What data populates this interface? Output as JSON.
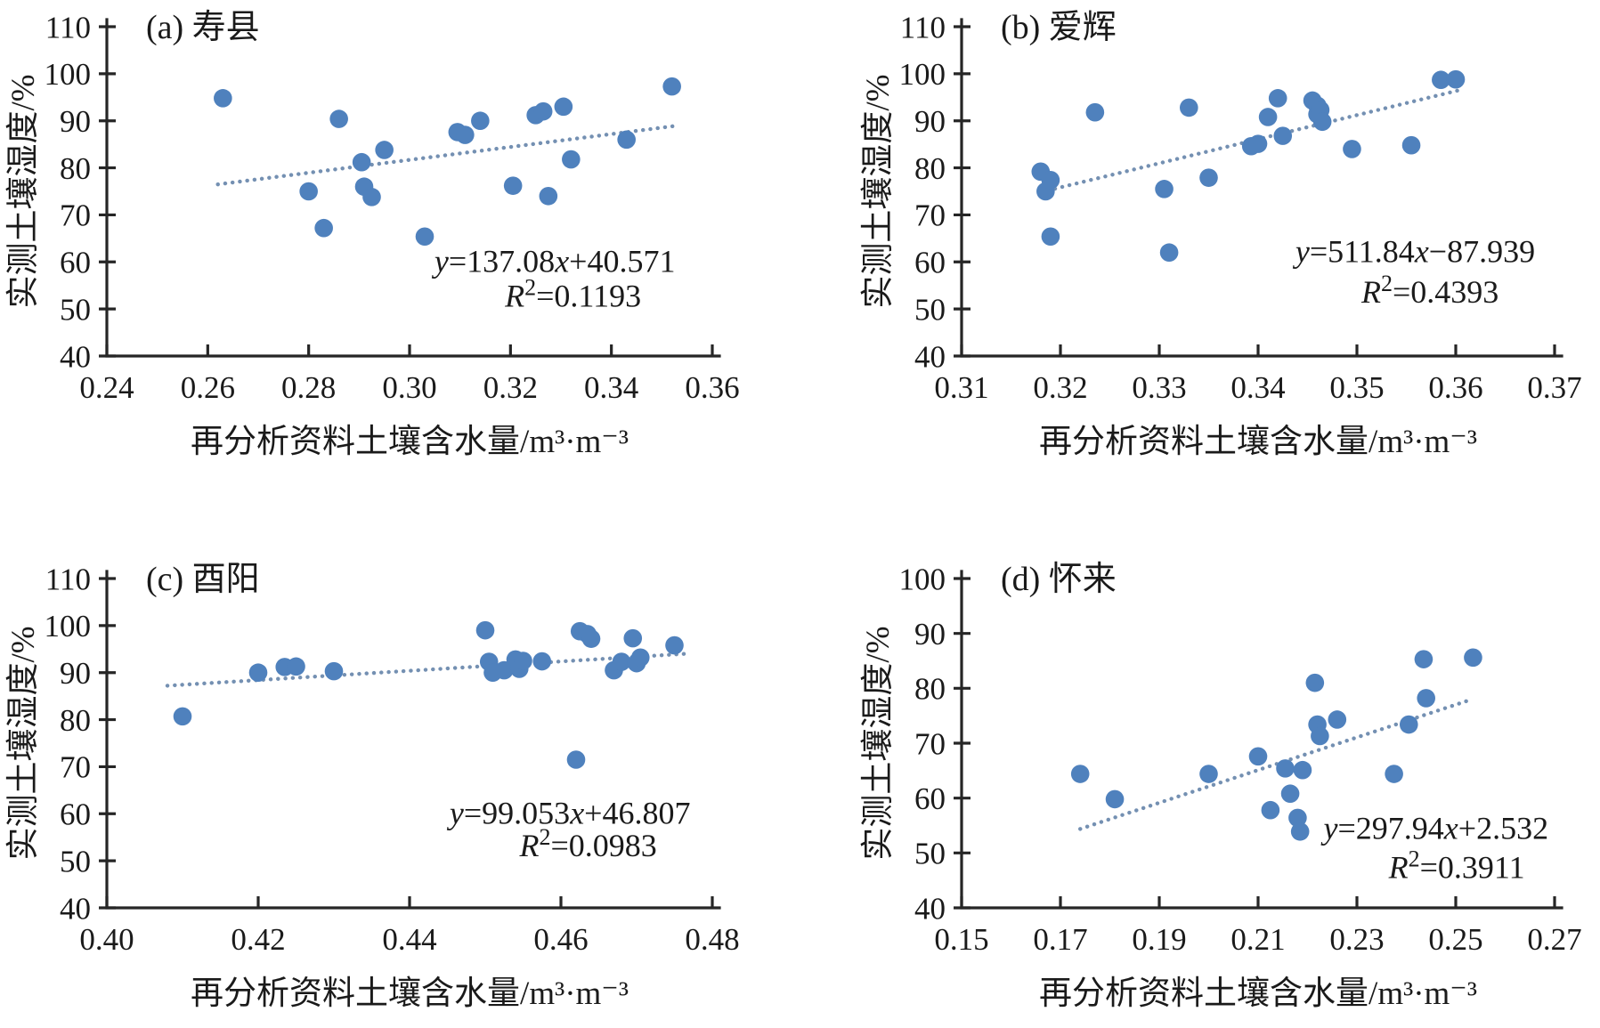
{
  "figure": {
    "background": "#ffffff",
    "point_color": "#4f81bd",
    "trend_color": "#7490b2",
    "axis_color": "#262626",
    "text_color": "#1a1a1a",
    "y_axis_title": "实测土壤湿度/%",
    "x_axis_title": "再分析资料土壤含水量/m³·m⁻³"
  },
  "chart_data": [
    {
      "type": "scatter",
      "panel": "a",
      "title": "(a) 寿县",
      "xlabel": "再分析资料土壤含水量/m³·m⁻³",
      "ylabel": "实测土壤湿度/%",
      "xlim": [
        0.24,
        0.36
      ],
      "ylim": [
        40,
        110
      ],
      "x_tick_values": [
        0.24,
        0.26,
        0.28,
        0.3,
        0.32,
        0.34,
        0.36
      ],
      "x_tick_labels": [
        "0.24",
        "0.26",
        "0.28",
        "0.30",
        "0.32",
        "0.34",
        "0.36"
      ],
      "y_tick_values": [
        40,
        50,
        60,
        70,
        80,
        90,
        100,
        110
      ],
      "y_tick_labels": [
        "40",
        "50",
        "60",
        "70",
        "80",
        "90",
        "100",
        "110"
      ],
      "grid": false,
      "points": [
        [
          0.263,
          94.8
        ],
        [
          0.28,
          75.0
        ],
        [
          0.283,
          67.2
        ],
        [
          0.286,
          90.4
        ],
        [
          0.2905,
          81.2
        ],
        [
          0.291,
          76.0
        ],
        [
          0.2925,
          73.8
        ],
        [
          0.295,
          83.8
        ],
        [
          0.303,
          65.4
        ],
        [
          0.3095,
          87.6
        ],
        [
          0.311,
          87.0
        ],
        [
          0.314,
          90.0
        ],
        [
          0.3205,
          76.2
        ],
        [
          0.325,
          91.2
        ],
        [
          0.3265,
          92.0
        ],
        [
          0.3275,
          74.0
        ],
        [
          0.3305,
          93.0
        ],
        [
          0.332,
          81.8
        ],
        [
          0.343,
          86.0
        ],
        [
          0.352,
          97.3
        ]
      ],
      "trend": {
        "slope": 137.08,
        "intercept": 40.571,
        "x_start": 0.262,
        "x_end": 0.3535
      },
      "equation": {
        "text": "y=137.08x+40.571",
        "slope_text": "=137.08",
        "intercept_text": "+40.571",
        "r2_full": "R²=0.1193",
        "r2_text": "=0.1193",
        "pos": [
          0.74,
          0.745
        ],
        "r2_pos": [
          0.77,
          0.85
        ]
      }
    },
    {
      "type": "scatter",
      "panel": "b",
      "title": "(b) 爱辉",
      "xlabel": "再分析资料土壤含水量/m³·m⁻³",
      "ylabel": "实测土壤湿度/%",
      "xlim": [
        0.31,
        0.37
      ],
      "ylim": [
        40,
        110
      ],
      "x_tick_values": [
        0.31,
        0.32,
        0.33,
        0.34,
        0.35,
        0.36,
        0.37
      ],
      "x_tick_labels": [
        "0.31",
        "0.32",
        "0.33",
        "0.34",
        "0.35",
        "0.36",
        "0.37"
      ],
      "y_tick_values": [
        40,
        50,
        60,
        70,
        80,
        90,
        100,
        110
      ],
      "y_tick_labels": [
        "40",
        "50",
        "60",
        "70",
        "80",
        "90",
        "100",
        "110"
      ],
      "grid": false,
      "points": [
        [
          0.318,
          79.2
        ],
        [
          0.3185,
          75.0
        ],
        [
          0.319,
          77.4
        ],
        [
          0.319,
          65.4
        ],
        [
          0.3235,
          91.8
        ],
        [
          0.3305,
          75.5
        ],
        [
          0.331,
          62.0
        ],
        [
          0.333,
          92.8
        ],
        [
          0.335,
          77.9
        ],
        [
          0.3393,
          84.6
        ],
        [
          0.34,
          85.1
        ],
        [
          0.341,
          90.8
        ],
        [
          0.342,
          94.8
        ],
        [
          0.3425,
          86.8
        ],
        [
          0.3455,
          94.3
        ],
        [
          0.346,
          93.2
        ],
        [
          0.346,
          91.4
        ],
        [
          0.3463,
          92.3
        ],
        [
          0.3465,
          89.8
        ],
        [
          0.3495,
          84.0
        ],
        [
          0.3555,
          84.8
        ],
        [
          0.3585,
          98.7
        ],
        [
          0.36,
          98.8
        ]
      ],
      "trend": {
        "slope": 511.84,
        "intercept": -87.939,
        "x_start": 0.318,
        "x_end": 0.3605
      },
      "equation": {
        "text": "y=511.84x−87.939",
        "slope_text": "=511.84",
        "intercept_text": "−87.939",
        "r2_full": "R²=0.4393",
        "r2_text": "=0.4393",
        "pos": [
          0.765,
          0.715
        ],
        "r2_pos": [
          0.79,
          0.838
        ]
      }
    },
    {
      "type": "scatter",
      "panel": "c",
      "title": "(c) 酉阳",
      "xlabel": "再分析资料土壤含水量/m³·m⁻³",
      "ylabel": "实测土壤湿度/%",
      "xlim": [
        0.4,
        0.48
      ],
      "ylim": [
        40,
        110
      ],
      "x_tick_values": [
        0.4,
        0.42,
        0.44,
        0.46,
        0.48
      ],
      "x_tick_labels": [
        "0.40",
        "0.42",
        "0.44",
        "0.46",
        "0.48"
      ],
      "y_tick_values": [
        40,
        50,
        60,
        70,
        80,
        90,
        100,
        110
      ],
      "y_tick_labels": [
        "40",
        "50",
        "60",
        "70",
        "80",
        "90",
        "100",
        "110"
      ],
      "grid": false,
      "points": [
        [
          0.41,
          80.7
        ],
        [
          0.42,
          90.0
        ],
        [
          0.4235,
          91.2
        ],
        [
          0.425,
          91.3
        ],
        [
          0.43,
          90.3
        ],
        [
          0.45,
          99.0
        ],
        [
          0.4505,
          92.3
        ],
        [
          0.451,
          90.0
        ],
        [
          0.4525,
          90.5
        ],
        [
          0.454,
          92.8
        ],
        [
          0.4545,
          90.8
        ],
        [
          0.455,
          92.5
        ],
        [
          0.4575,
          92.4
        ],
        [
          0.462,
          71.5
        ],
        [
          0.4625,
          98.8
        ],
        [
          0.4635,
          98.2
        ],
        [
          0.464,
          97.2
        ],
        [
          0.467,
          90.5
        ],
        [
          0.468,
          92.3
        ],
        [
          0.4695,
          97.3
        ],
        [
          0.47,
          92.0
        ],
        [
          0.4705,
          93.2
        ],
        [
          0.475,
          95.8
        ]
      ],
      "trend": {
        "slope": 99.053,
        "intercept": 46.807,
        "x_start": 0.408,
        "x_end": 0.477
      },
      "equation": {
        "text": "y=99.053x+46.807",
        "slope_text": "=99.053",
        "intercept_text": "+46.807",
        "r2_full": "R²=0.0983",
        "r2_text": "=0.0983",
        "pos": [
          0.765,
          0.745
        ],
        "r2_pos": [
          0.795,
          0.843
        ]
      }
    },
    {
      "type": "scatter",
      "panel": "d",
      "title": "(d) 怀来",
      "xlabel": "再分析资料土壤含水量/m³·m⁻³",
      "ylabel": "实测土壤湿度/%",
      "xlim": [
        0.15,
        0.27
      ],
      "ylim": [
        40,
        100
      ],
      "x_tick_values": [
        0.15,
        0.17,
        0.19,
        0.21,
        0.23,
        0.25,
        0.27
      ],
      "x_tick_labels": [
        "0.15",
        "0.17",
        "0.19",
        "0.21",
        "0.23",
        "0.25",
        "0.27"
      ],
      "y_tick_values": [
        40,
        50,
        60,
        70,
        80,
        90,
        100
      ],
      "y_tick_labels": [
        "40",
        "50",
        "60",
        "70",
        "80",
        "90",
        "100"
      ],
      "grid": false,
      "points": [
        [
          0.174,
          64.4
        ],
        [
          0.181,
          59.8
        ],
        [
          0.2,
          64.4
        ],
        [
          0.21,
          67.6
        ],
        [
          0.2125,
          57.8
        ],
        [
          0.2155,
          65.4
        ],
        [
          0.2165,
          60.8
        ],
        [
          0.218,
          56.4
        ],
        [
          0.2185,
          53.9
        ],
        [
          0.219,
          65.1
        ],
        [
          0.2215,
          81.0
        ],
        [
          0.222,
          73.4
        ],
        [
          0.2225,
          71.3
        ],
        [
          0.226,
          74.3
        ],
        [
          0.2375,
          64.4
        ],
        [
          0.2405,
          73.4
        ],
        [
          0.2435,
          85.3
        ],
        [
          0.244,
          78.2
        ],
        [
          0.2535,
          85.6
        ]
      ],
      "trend": {
        "slope": 297.94,
        "intercept": 2.532,
        "x_start": 0.174,
        "x_end": 0.2535
      },
      "equation": {
        "text": "y=297.94x+2.532",
        "slope_text": "=297.94",
        "intercept_text": "+2.532",
        "r2_full": "R²=0.3911",
        "r2_text": "=0.3911",
        "pos": [
          0.8,
          0.79
        ],
        "r2_pos": [
          0.835,
          0.91
        ]
      }
    }
  ]
}
